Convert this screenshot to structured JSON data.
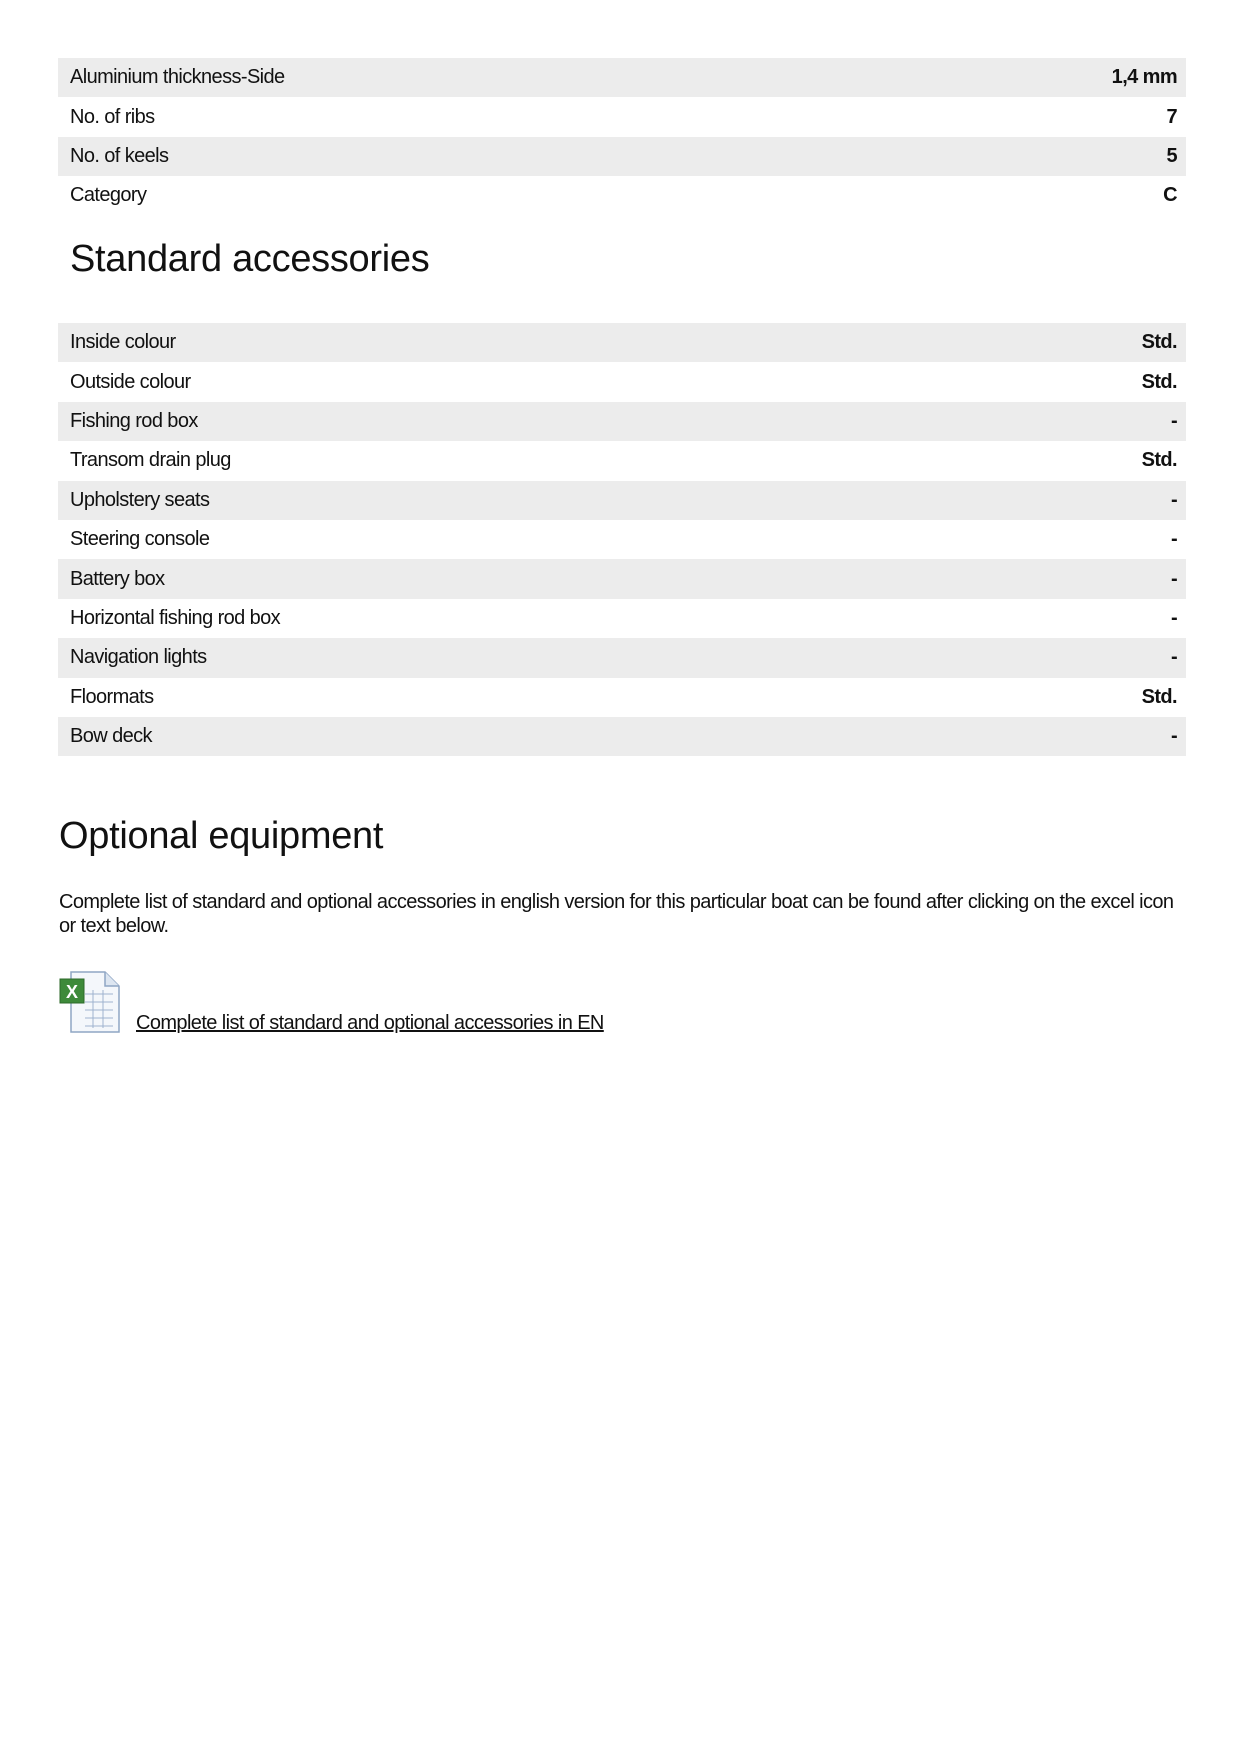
{
  "specs": [
    {
      "label": "Aluminium thickness-Side",
      "value": "1,4 mm"
    },
    {
      "label": "No. of ribs",
      "value": "7"
    },
    {
      "label": "No. of keels",
      "value": "5"
    },
    {
      "label": "Category",
      "value": "C"
    }
  ],
  "standard": {
    "title": "Standard accessories",
    "items": [
      {
        "label": "Inside colour",
        "value": "Std."
      },
      {
        "label": "Outside colour",
        "value": "Std."
      },
      {
        "label": "Fishing rod box",
        "value": "-"
      },
      {
        "label": "Transom drain plug",
        "value": "Std."
      },
      {
        "label": "Upholstery seats",
        "value": "-"
      },
      {
        "label": "Steering console",
        "value": "-"
      },
      {
        "label": "Battery box",
        "value": "-"
      },
      {
        "label": "Horizontal fishing rod box",
        "value": "-"
      },
      {
        "label": "Navigation lights",
        "value": "-"
      },
      {
        "label": "Floormats",
        "value": "Std."
      },
      {
        "label": "Bow deck",
        "value": "-"
      }
    ]
  },
  "optional": {
    "title": "Optional equipment",
    "text": "Complete list of standard and optional accessories in english version for this particular boat can be found after clicking on the excel icon or text below.",
    "icon": "excel-file-icon",
    "link": "Complete list of standard and optional accessories in EN"
  }
}
